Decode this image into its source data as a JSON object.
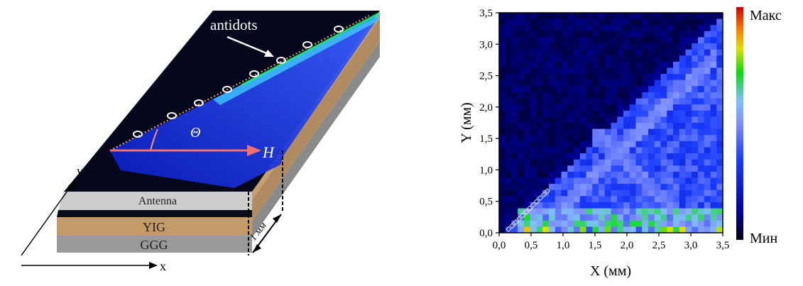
{
  "left_panel": {
    "label_antidots": "antidots",
    "label_theta": "Θ",
    "label_field": "H",
    "label_antenna": "Antenna",
    "label_yig": "YIG",
    "label_ggg": "GGG",
    "label_thickness": "1 мм",
    "axis_x": "x",
    "axis_y": "y"
  },
  "right_panel": {
    "chart_data": {
      "type": "heatmap",
      "xlabel": "X (мм)",
      "ylabel": "Y (мм)",
      "xlim": [
        0,
        3.5
      ],
      "ylim": [
        0,
        3.5
      ],
      "x_ticks": [
        "0,0",
        "0,5",
        "1,0",
        "1,5",
        "2,0",
        "2,5",
        "3,0",
        "3,5"
      ],
      "y_ticks": [
        "0,0",
        "0,5",
        "1,0",
        "1,5",
        "2,0",
        "2,5",
        "3,0",
        "3,5"
      ],
      "colorbar_max_label": "Макс",
      "colorbar_min_label": "Мин",
      "colormap": [
        "#000010",
        "#0000a0",
        "#1a3cff",
        "#8090ff",
        "#80c0ff",
        "#00e000",
        "#e0e000",
        "#ff8000",
        "#cc0000"
      ]
    }
  }
}
